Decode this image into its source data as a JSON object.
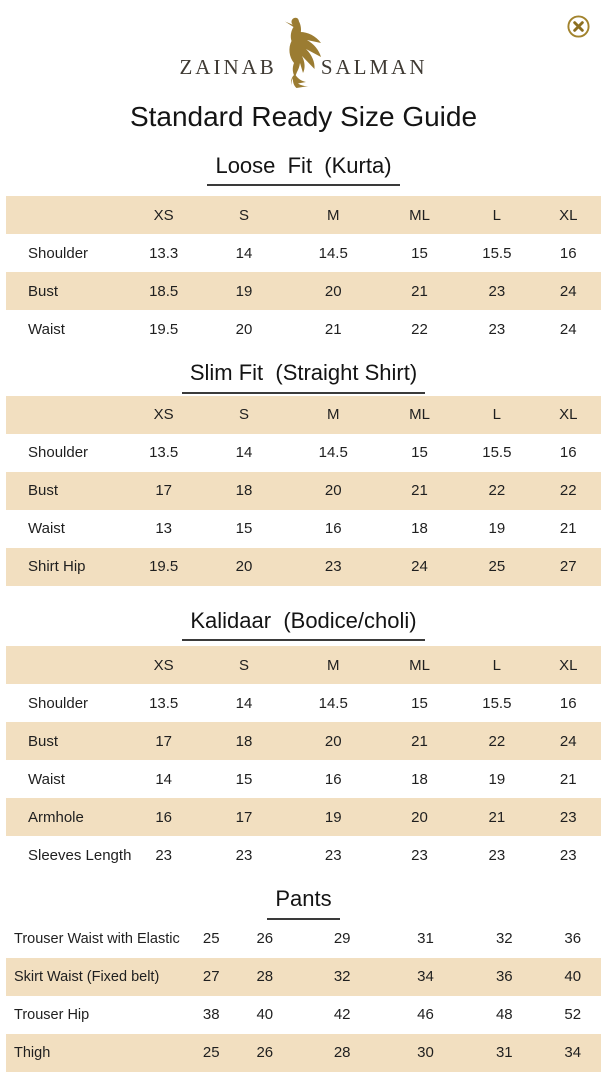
{
  "brand": {
    "name_left": "ZAINAB",
    "name_right": "SALMAN"
  },
  "page_title": "Standard Ready Size Guide",
  "size_columns": [
    "XS",
    "S",
    "M",
    "ML",
    "L",
    "XL"
  ],
  "colors": {
    "row_beige": "#f2dfc0",
    "brand_gold": "#9b7c32"
  },
  "sections": [
    {
      "id": "loose-fit",
      "title": "Loose  Fit  (Kurta)",
      "has_size_header": true,
      "rows": [
        {
          "label": "Shoulder",
          "values": [
            "13.3",
            "14",
            "14.5",
            "15",
            "15.5",
            "16"
          ]
        },
        {
          "label": "Bust",
          "values": [
            "18.5",
            "19",
            "20",
            "21",
            "23",
            "24"
          ]
        },
        {
          "label": "Waist",
          "values": [
            "19.5",
            "20",
            "21",
            "22",
            "23",
            "24"
          ]
        }
      ]
    },
    {
      "id": "slim-fit",
      "title": "Slim Fit  (Straight Shirt)",
      "has_size_header": true,
      "rows": [
        {
          "label": "Shoulder",
          "values": [
            "13.5",
            "14",
            "14.5",
            "15",
            "15.5",
            "16"
          ]
        },
        {
          "label": "Bust",
          "values": [
            "17",
            "18",
            "20",
            "21",
            "22",
            "22"
          ]
        },
        {
          "label": "Waist",
          "values": [
            "13",
            "15",
            "16",
            "18",
            "19",
            "21"
          ]
        },
        {
          "label": "Shirt Hip",
          "values": [
            "19.5",
            "20",
            "23",
            "24",
            "25",
            "27"
          ]
        }
      ]
    },
    {
      "id": "kalidaar",
      "title": "Kalidaar  (Bodice/choli)",
      "has_size_header": true,
      "rows": [
        {
          "label": "Shoulder",
          "values": [
            "13.5",
            "14",
            "14.5",
            "15",
            "15.5",
            "16"
          ]
        },
        {
          "label": "Bust",
          "values": [
            "17",
            "18",
            "20",
            "21",
            "22",
            "24"
          ]
        },
        {
          "label": "Waist",
          "values": [
            "14",
            "15",
            "16",
            "18",
            "19",
            "21"
          ]
        },
        {
          "label": "Armhole",
          "values": [
            "16",
            "17",
            "19",
            "20",
            "21",
            "23"
          ]
        },
        {
          "label": "Sleeves Length",
          "values": [
            "23",
            "23",
            "23",
            "23",
            "23",
            "23"
          ]
        }
      ]
    },
    {
      "id": "pants",
      "title": "Pants",
      "has_size_header": false,
      "rows": [
        {
          "label": "Trouser Waist with Elastic",
          "values": [
            "25",
            "26",
            "29",
            "31",
            "32",
            "36"
          ]
        },
        {
          "label": "Skirt Waist (Fixed belt)",
          "values": [
            "27",
            "28",
            "32",
            "34",
            "36",
            "40"
          ]
        },
        {
          "label": "Trouser Hip",
          "values": [
            "38",
            "40",
            "42",
            "46",
            "48",
            "52"
          ]
        },
        {
          "label": "Thigh",
          "values": [
            "25",
            "26",
            "28",
            "30",
            "31",
            "34"
          ]
        }
      ]
    }
  ]
}
